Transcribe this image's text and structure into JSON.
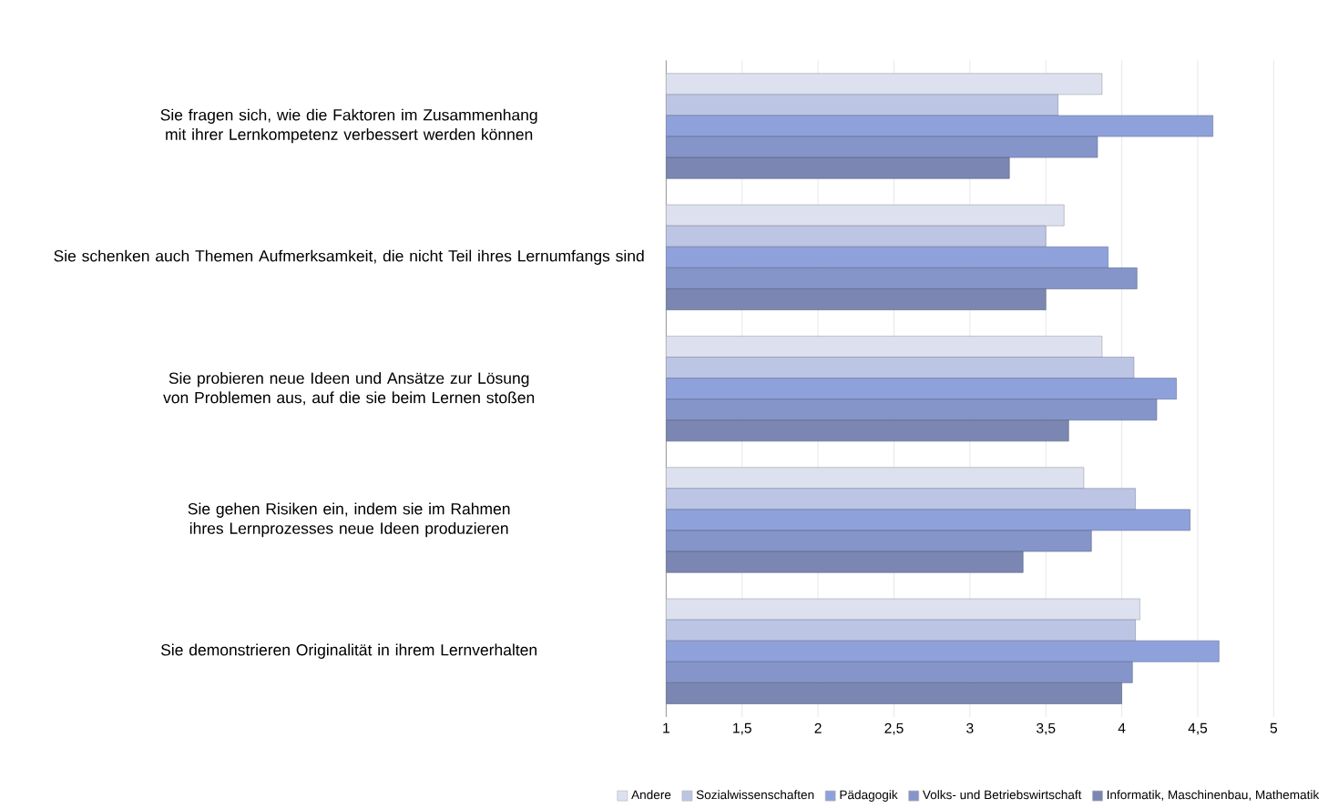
{
  "chart_data": {
    "type": "bar",
    "orientation": "horizontal",
    "categories": [
      "Sie fragen sich, wie die Faktoren im Zusammenhang mit ihrer Lernkompetenz verbessert werden können",
      "Sie schenken auch Themen Aufmerksamkeit, die nicht Teil ihres Lernumfangs sind",
      "Sie probieren neue Ideen und Ansätze zur Lösung von Problemen aus, auf die sie beim Lernen stoßen",
      "Sie gehen Risiken ein, indem sie im Rahmen ihres Lernprozesses neue Ideen produzieren",
      "Sie demonstrieren Originalität in ihrem Lernverhalten"
    ],
    "series": [
      {
        "name": "Andere",
        "color": "#dde1ef",
        "values": [
          3.87,
          3.62,
          3.87,
          3.75,
          4.12
        ]
      },
      {
        "name": "Sozialwissenschaften",
        "color": "#bcc5e4",
        "values": [
          3.58,
          3.5,
          4.08,
          4.09,
          4.09
        ]
      },
      {
        "name": "Pädagogik",
        "color": "#8fa1da",
        "values": [
          4.6,
          3.91,
          4.36,
          4.45,
          4.64
        ]
      },
      {
        "name": "Volks- und Betriebswirtschaft",
        "color": "#8595c9",
        "values": [
          3.84,
          4.1,
          4.23,
          3.8,
          4.07
        ]
      },
      {
        "name": "Informatik, Maschinenbau, Mathematik",
        "color": "#7b87b2",
        "values": [
          3.26,
          3.5,
          3.65,
          3.35,
          4.0
        ]
      }
    ],
    "xlim": [
      1,
      5
    ],
    "xticks": [
      {
        "value": 1,
        "label": "1"
      },
      {
        "value": 1.5,
        "label": "1,5"
      },
      {
        "value": 2,
        "label": "2"
      },
      {
        "value": 2.5,
        "label": "2,5"
      },
      {
        "value": 3,
        "label": "3"
      },
      {
        "value": 3.5,
        "label": "3,5"
      },
      {
        "value": 4,
        "label": "4"
      },
      {
        "value": 4.5,
        "label": "4,5"
      },
      {
        "value": 5,
        "label": "5"
      }
    ],
    "grid": "x",
    "legend": "bottom"
  }
}
